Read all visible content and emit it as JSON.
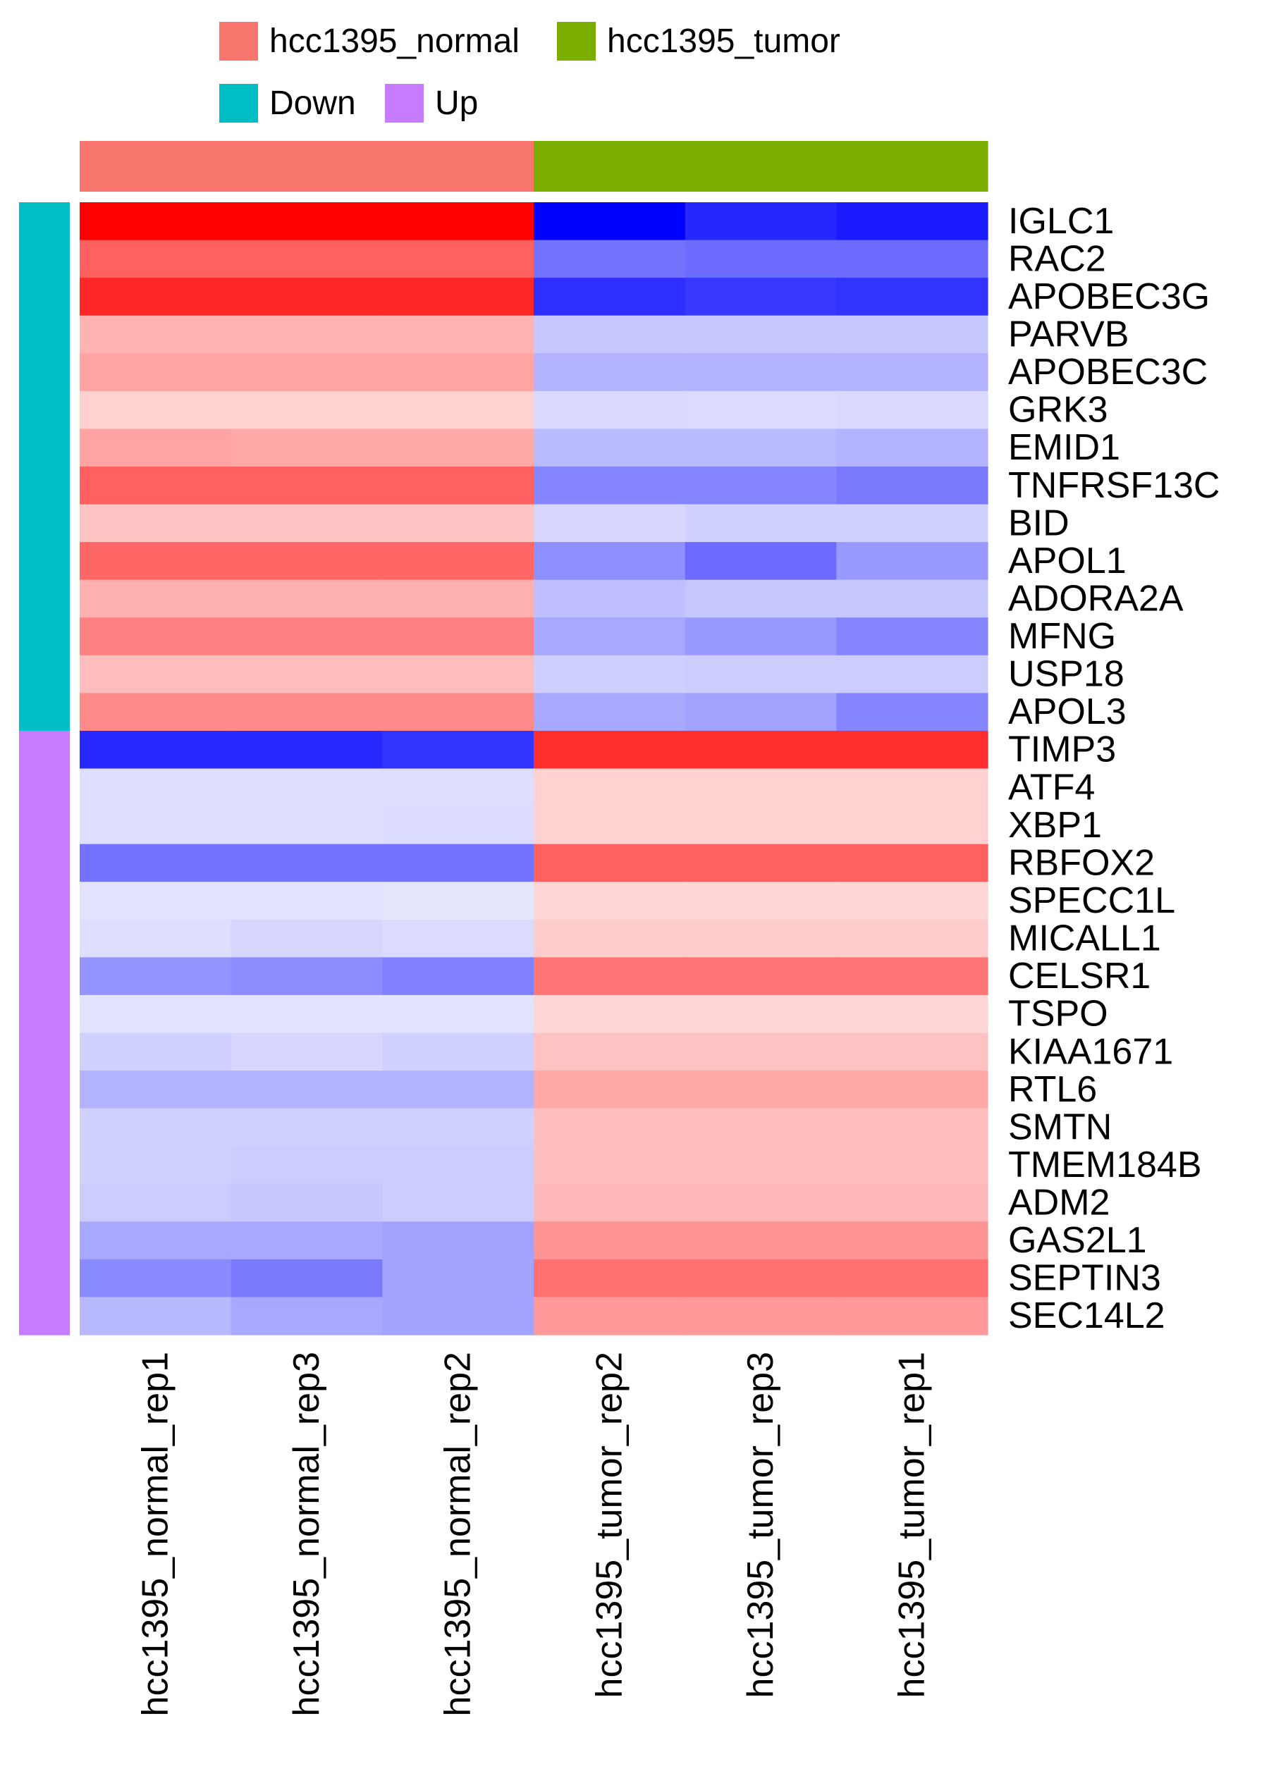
{
  "chart_data": {
    "type": "heatmap",
    "title": "",
    "xlabel": "",
    "ylabel": "",
    "columns": [
      "hcc1395_normal_rep1",
      "hcc1395_normal_rep3",
      "hcc1395_normal_rep2",
      "hcc1395_tumor_rep2",
      "hcc1395_tumor_rep3",
      "hcc1395_tumor_rep1"
    ],
    "column_groups": [
      "hcc1395_normal",
      "hcc1395_normal",
      "hcc1395_normal",
      "hcc1395_tumor",
      "hcc1395_tumor",
      "hcc1395_tumor"
    ],
    "rows": [
      "IGLC1",
      "RAC2",
      "APOBEC3G",
      "PARVB",
      "APOBEC3C",
      "GRK3",
      "EMID1",
      "TNFRSF13C",
      "BID",
      "APOL1",
      "ADORA2A",
      "MFNG",
      "USP18",
      "APOL3",
      "TIMP3",
      "ATF4",
      "XBP1",
      "RBFOX2",
      "SPECC1L",
      "MICALL1",
      "CELSR1",
      "TSPO",
      "KIAA1671",
      "RTL6",
      "SMTN",
      "TMEM184B",
      "ADM2",
      "GAS2L1",
      "SEPTIN3",
      "SEC14L2"
    ],
    "row_groups": [
      "Down",
      "Down",
      "Down",
      "Down",
      "Down",
      "Down",
      "Down",
      "Down",
      "Down",
      "Down",
      "Down",
      "Down",
      "Down",
      "Down",
      "Up",
      "Up",
      "Up",
      "Up",
      "Up",
      "Up",
      "Up",
      "Up",
      "Up",
      "Up",
      "Up",
      "Up",
      "Up",
      "Up",
      "Up",
      "Up"
    ],
    "values": [
      [
        1.0,
        1.0,
        1.0,
        -1.0,
        -0.85,
        -0.9
      ],
      [
        0.62,
        0.62,
        0.62,
        -0.55,
        -0.58,
        -0.58
      ],
      [
        0.85,
        0.85,
        0.85,
        -0.82,
        -0.78,
        -0.8
      ],
      [
        0.3,
        0.3,
        0.3,
        -0.22,
        -0.22,
        -0.22
      ],
      [
        0.36,
        0.36,
        0.36,
        -0.3,
        -0.3,
        -0.3
      ],
      [
        0.18,
        0.18,
        0.18,
        -0.15,
        -0.14,
        -0.15
      ],
      [
        0.36,
        0.34,
        0.34,
        -0.27,
        -0.27,
        -0.3
      ],
      [
        0.62,
        0.62,
        0.62,
        -0.48,
        -0.48,
        -0.52
      ],
      [
        0.23,
        0.23,
        0.23,
        -0.16,
        -0.18,
        -0.18
      ],
      [
        0.6,
        0.6,
        0.6,
        -0.44,
        -0.58,
        -0.4
      ],
      [
        0.31,
        0.31,
        0.31,
        -0.25,
        -0.22,
        -0.22
      ],
      [
        0.5,
        0.5,
        0.5,
        -0.34,
        -0.4,
        -0.48
      ],
      [
        0.26,
        0.26,
        0.26,
        -0.19,
        -0.2,
        -0.2
      ],
      [
        0.46,
        0.46,
        0.46,
        -0.34,
        -0.36,
        -0.48
      ],
      [
        -0.84,
        -0.84,
        -0.8,
        0.82,
        0.82,
        0.82
      ],
      [
        -0.13,
        -0.13,
        -0.13,
        0.18,
        0.18,
        0.18
      ],
      [
        -0.13,
        -0.13,
        -0.14,
        0.18,
        0.18,
        0.18
      ],
      [
        -0.55,
        -0.55,
        -0.55,
        0.62,
        0.62,
        0.62
      ],
      [
        -0.11,
        -0.11,
        -0.1,
        0.16,
        0.16,
        0.16
      ],
      [
        -0.13,
        -0.16,
        -0.14,
        0.2,
        0.2,
        0.2
      ],
      [
        -0.42,
        -0.45,
        -0.5,
        0.54,
        0.54,
        0.54
      ],
      [
        -0.11,
        -0.11,
        -0.11,
        0.16,
        0.16,
        0.16
      ],
      [
        -0.18,
        -0.16,
        -0.18,
        0.24,
        0.24,
        0.24
      ],
      [
        -0.3,
        -0.3,
        -0.3,
        0.34,
        0.34,
        0.34
      ],
      [
        -0.18,
        -0.18,
        -0.18,
        0.26,
        0.26,
        0.26
      ],
      [
        -0.18,
        -0.2,
        -0.2,
        0.26,
        0.26,
        0.26
      ],
      [
        -0.2,
        -0.22,
        -0.2,
        0.28,
        0.28,
        0.28
      ],
      [
        -0.34,
        -0.34,
        -0.36,
        0.42,
        0.42,
        0.42
      ],
      [
        -0.46,
        -0.52,
        -0.36,
        0.56,
        0.56,
        0.56
      ],
      [
        -0.28,
        -0.34,
        -0.36,
        0.4,
        0.4,
        0.4
      ]
    ],
    "color_low": "#0000FF",
    "color_mid": "#FFFFFF",
    "color_high": "#FF0000",
    "legend": {
      "position": "top",
      "entries": [
        {
          "label": "hcc1395_normal",
          "color": "#F8766D"
        },
        {
          "label": "hcc1395_tumor",
          "color": "#7CAE00"
        },
        {
          "label": "Down",
          "color": "#00BFC4"
        },
        {
          "label": "Up",
          "color": "#C77CFF"
        }
      ]
    },
    "grid": false
  }
}
